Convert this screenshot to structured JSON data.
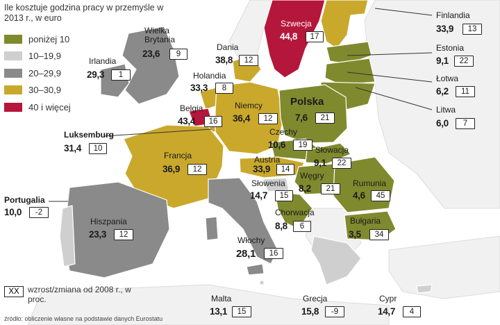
{
  "title": "Ile kosztuje godzina pracy w przemyśle w 2013 r., w euro",
  "legend": [
    {
      "label": "poniżej 10",
      "color": "#7f8a2e"
    },
    {
      "label": "10–19,9",
      "color": "#cfcfcf"
    },
    {
      "label": "20–29,9",
      "color": "#8a8a8a"
    },
    {
      "label": "30–30,9",
      "color": "#c9a82c"
    },
    {
      "label": "40 i więcej",
      "color": "#b5163b"
    }
  ],
  "countries": [
    {
      "name": "Szwecja",
      "value": "44,8",
      "change": "17"
    },
    {
      "name": "Finlandia",
      "value": "33,9",
      "change": "13"
    },
    {
      "name": "Estonia",
      "value": "9,1",
      "change": "22"
    },
    {
      "name": "Łotwa",
      "value": "6,2",
      "change": "11"
    },
    {
      "name": "Litwa",
      "value": "6,0",
      "change": "7"
    },
    {
      "name": "Wielka Brytania",
      "value": "23,6",
      "change": "9"
    },
    {
      "name": "Irlandia",
      "value": "29,3",
      "change": "1"
    },
    {
      "name": "Dania",
      "value": "38,8",
      "change": "12"
    },
    {
      "name": "Holandia",
      "value": "33,3",
      "change": "8"
    },
    {
      "name": "Belgia",
      "value": "43,4",
      "change": "16"
    },
    {
      "name": "Niemcy",
      "value": "36,4",
      "change": "12"
    },
    {
      "name": "Polska",
      "value": "7,6",
      "change": "21"
    },
    {
      "name": "Luksemburg",
      "value": "31,4",
      "change": "10"
    },
    {
      "name": "Czechy",
      "value": "10,6",
      "change": "19"
    },
    {
      "name": "Francja",
      "value": "36,9",
      "change": "12"
    },
    {
      "name": "Słowacja",
      "value": "9,1",
      "change": "22"
    },
    {
      "name": "Austria",
      "value": "33,9",
      "change": "14"
    },
    {
      "name": "Węgry",
      "value": "8,2",
      "change": "21"
    },
    {
      "name": "Słowenia",
      "value": "14,7",
      "change": "15"
    },
    {
      "name": "Rumunia",
      "value": "4,6",
      "change": "45"
    },
    {
      "name": "Portugalia",
      "value": "10,0",
      "change": "-2"
    },
    {
      "name": "Chorwacja",
      "value": "8,8",
      "change": "6"
    },
    {
      "name": "Hiszpania",
      "value": "23,3",
      "change": "12"
    },
    {
      "name": "Bułgaria",
      "value": "3,5",
      "change": "34"
    },
    {
      "name": "Włochy",
      "value": "28,1",
      "change": "16"
    },
    {
      "name": "Malta",
      "value": "13,1",
      "change": "15"
    },
    {
      "name": "Grecja",
      "value": "15,8",
      "change": "-9"
    },
    {
      "name": "Cypr",
      "value": "14,7",
      "change": "4"
    }
  ],
  "note": {
    "box": "XX",
    "text": "wzrost/zmiana od 2008 r., w proc."
  },
  "source": "źródło: obliczenie własne na podstawie danych Eurostatu"
}
